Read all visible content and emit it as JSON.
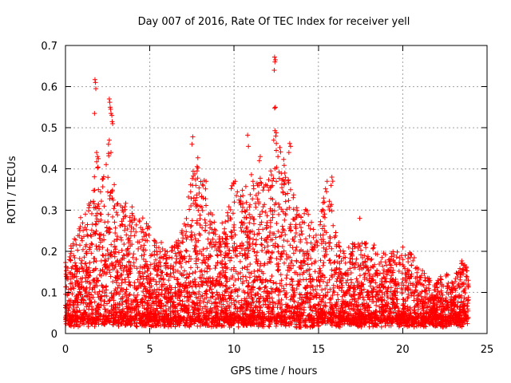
{
  "chart_data": {
    "type": "scatter",
    "title": "Day 007 of 2016, Rate Of TEC Index for receiver yell",
    "xlabel": "GPS time / hours",
    "ylabel": "ROTI / TECUs",
    "xlim": [
      0,
      25
    ],
    "ylim": [
      0,
      0.7
    ],
    "xticks": [
      0,
      5,
      10,
      15,
      20,
      25
    ],
    "xtick_labels": [
      "0",
      "5",
      "10",
      "15",
      "20",
      "25"
    ],
    "yticks": [
      0,
      0.1,
      0.2,
      0.3,
      0.4,
      0.5,
      0.6,
      0.7
    ],
    "ytick_labels": [
      "0",
      "0.1",
      "0.2",
      "0.3",
      "0.4",
      "0.5",
      "0.6",
      "0.7"
    ],
    "grid": true,
    "marker": "+",
    "color": "#ff0000",
    "x_data_range": [
      0.0,
      23.9
    ],
    "envelope": {
      "x": [
        0.0,
        0.5,
        1.0,
        1.5,
        1.8,
        2.2,
        2.6,
        3.0,
        3.5,
        4.0,
        4.5,
        5.0,
        5.5,
        6.0,
        6.5,
        7.0,
        7.5,
        7.8,
        8.0,
        8.5,
        9.0,
        9.5,
        10.0,
        10.5,
        11.0,
        11.5,
        12.0,
        12.4,
        12.8,
        13.3,
        13.8,
        14.3,
        15.0,
        15.5,
        16.0,
        16.5,
        17.0,
        17.5,
        18.0,
        18.5,
        19.0,
        19.5,
        20.0,
        20.5,
        21.0,
        21.5,
        22.0,
        22.5,
        23.0,
        23.5,
        23.9
      ],
      "y": [
        0.18,
        0.24,
        0.3,
        0.32,
        0.43,
        0.38,
        0.45,
        0.33,
        0.32,
        0.32,
        0.3,
        0.26,
        0.24,
        0.2,
        0.22,
        0.26,
        0.4,
        0.44,
        0.42,
        0.35,
        0.24,
        0.3,
        0.38,
        0.36,
        0.4,
        0.38,
        0.36,
        0.48,
        0.45,
        0.36,
        0.33,
        0.3,
        0.26,
        0.38,
        0.26,
        0.2,
        0.22,
        0.22,
        0.22,
        0.2,
        0.2,
        0.2,
        0.2,
        0.2,
        0.16,
        0.14,
        0.13,
        0.15,
        0.13,
        0.18,
        0.16
      ]
    },
    "outliers": [
      {
        "x": 1.75,
        "y": 0.617
      },
      {
        "x": 1.78,
        "y": 0.61
      },
      {
        "x": 1.8,
        "y": 0.595
      },
      {
        "x": 1.72,
        "y": 0.535
      },
      {
        "x": 1.85,
        "y": 0.44
      },
      {
        "x": 1.9,
        "y": 0.43
      },
      {
        "x": 1.95,
        "y": 0.425
      },
      {
        "x": 2.6,
        "y": 0.57
      },
      {
        "x": 2.63,
        "y": 0.562
      },
      {
        "x": 2.65,
        "y": 0.55
      },
      {
        "x": 2.68,
        "y": 0.545
      },
      {
        "x": 2.7,
        "y": 0.535
      },
      {
        "x": 2.75,
        "y": 0.53
      },
      {
        "x": 2.77,
        "y": 0.515
      },
      {
        "x": 2.8,
        "y": 0.51
      },
      {
        "x": 2.6,
        "y": 0.47
      },
      {
        "x": 2.55,
        "y": 0.46
      },
      {
        "x": 2.7,
        "y": 0.44
      },
      {
        "x": 12.4,
        "y": 0.672
      },
      {
        "x": 12.45,
        "y": 0.665
      },
      {
        "x": 12.42,
        "y": 0.66
      },
      {
        "x": 12.38,
        "y": 0.64
      },
      {
        "x": 12.45,
        "y": 0.55
      },
      {
        "x": 12.4,
        "y": 0.548
      },
      {
        "x": 12.42,
        "y": 0.493
      },
      {
        "x": 12.5,
        "y": 0.488
      },
      {
        "x": 12.47,
        "y": 0.48
      },
      {
        "x": 12.35,
        "y": 0.47
      },
      {
        "x": 12.5,
        "y": 0.445
      },
      {
        "x": 12.6,
        "y": 0.43
      },
      {
        "x": 13.3,
        "y": 0.462
      },
      {
        "x": 13.35,
        "y": 0.455
      },
      {
        "x": 13.25,
        "y": 0.44
      },
      {
        "x": 10.8,
        "y": 0.482
      },
      {
        "x": 10.85,
        "y": 0.455
      },
      {
        "x": 7.55,
        "y": 0.478
      },
      {
        "x": 7.5,
        "y": 0.46
      },
      {
        "x": 11.55,
        "y": 0.43
      },
      {
        "x": 11.5,
        "y": 0.42
      },
      {
        "x": 15.8,
        "y": 0.38
      },
      {
        "x": 15.85,
        "y": 0.37
      },
      {
        "x": 15.75,
        "y": 0.36
      },
      {
        "x": 17.45,
        "y": 0.28
      },
      {
        "x": 18.3,
        "y": 0.215
      },
      {
        "x": 20.0,
        "y": 0.21
      }
    ]
  }
}
